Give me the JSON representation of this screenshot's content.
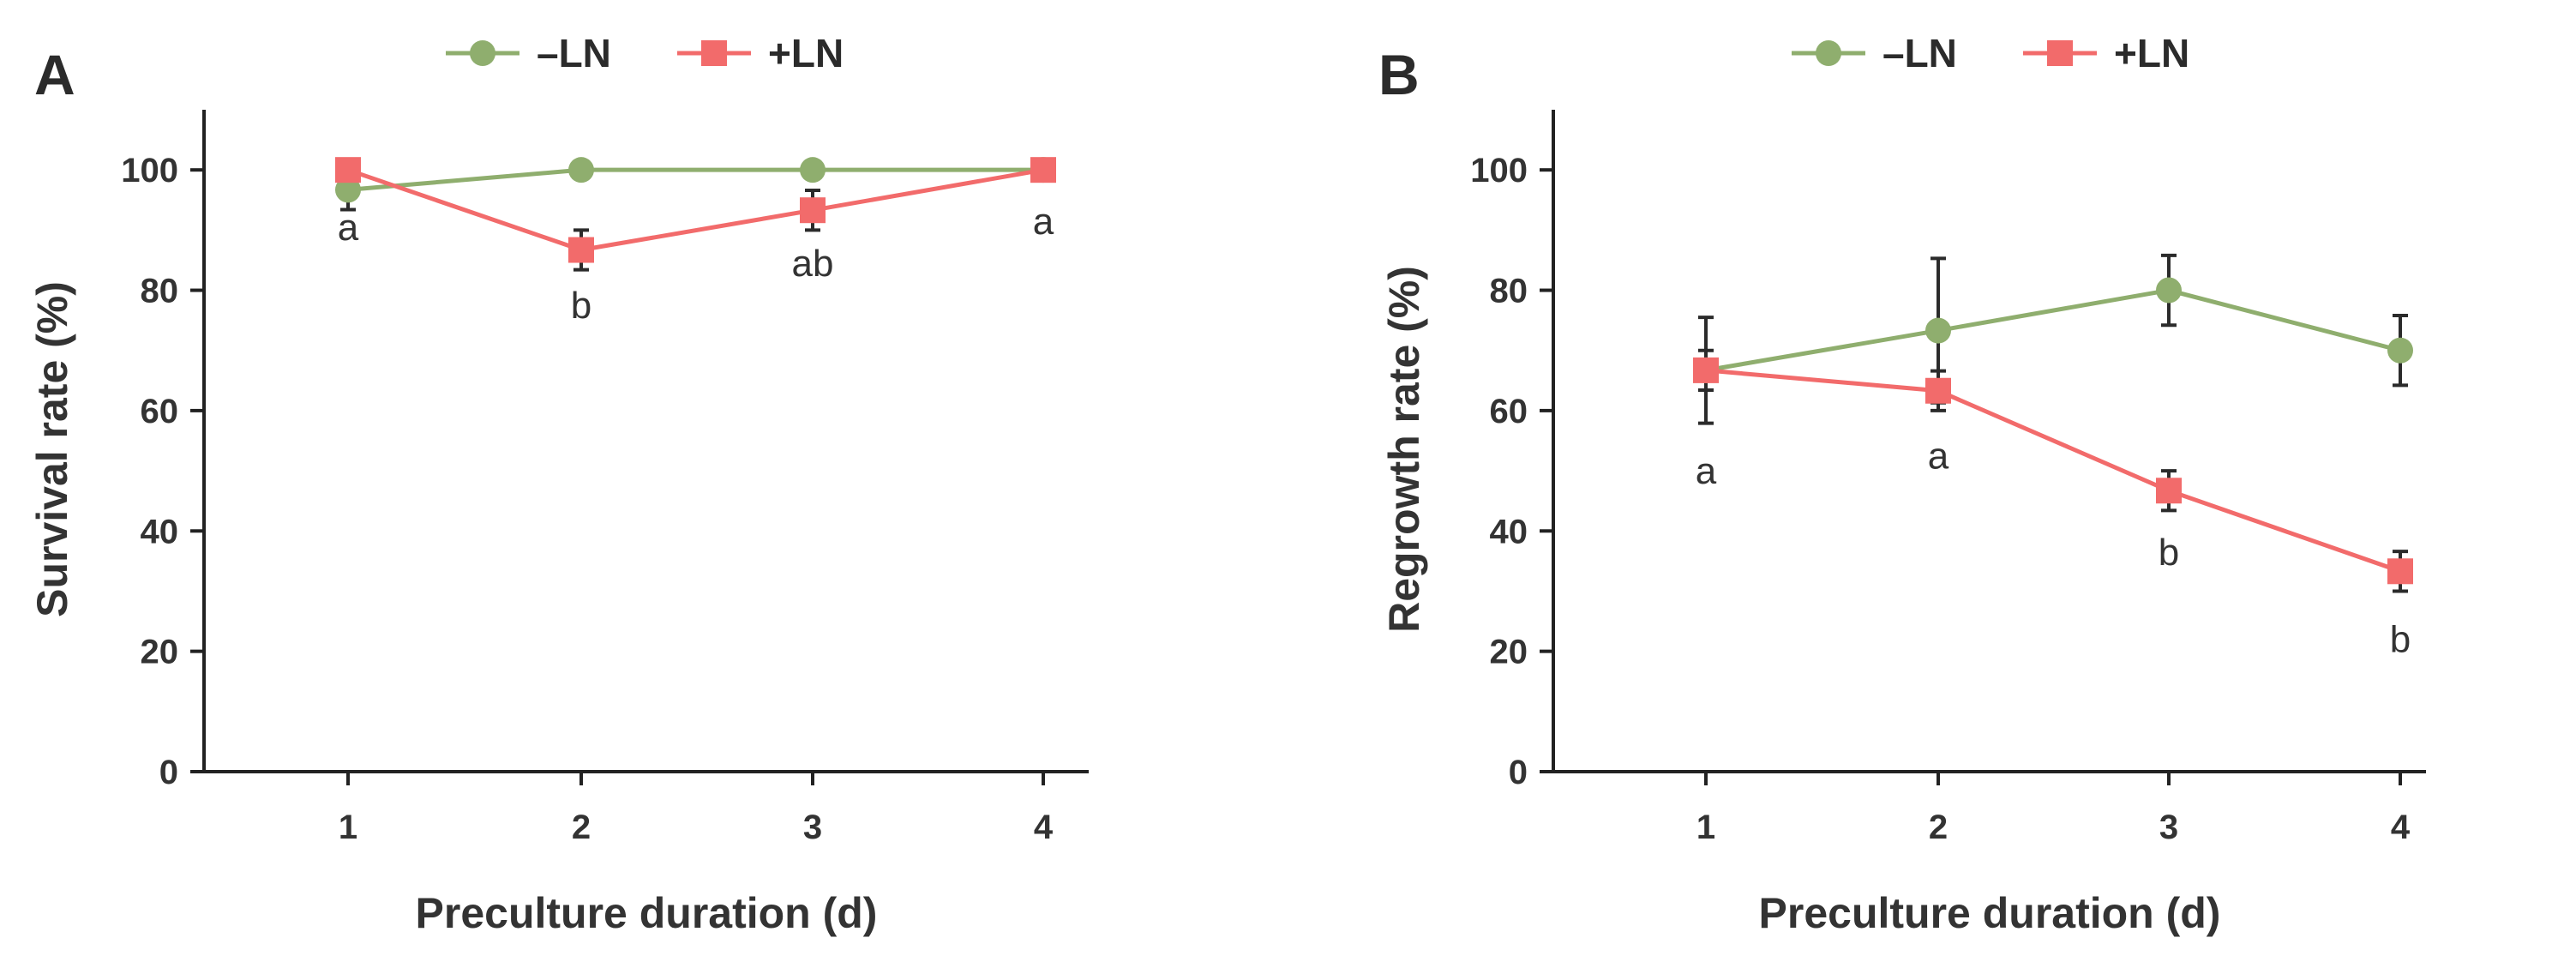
{
  "colors": {
    "minus_ln": "#8fae6e",
    "plus_ln": "#f26b6b",
    "text": "#333333"
  },
  "chart_data": [
    {
      "panel": "A",
      "type": "line",
      "xlabel": "Preculture duration (d)",
      "ylabel": "Survival rate (%)",
      "x": [
        1,
        2,
        3,
        4
      ],
      "ylim": [
        0,
        110
      ],
      "yticks": [
        0,
        20,
        40,
        60,
        80,
        100
      ],
      "legend": [
        "–LN",
        "+LN"
      ],
      "legend_position": "top-center",
      "series": [
        {
          "name": "–LN",
          "marker": "circle",
          "color": "#8fae6e",
          "values": [
            96.7,
            100,
            100,
            100
          ],
          "errors": [
            3.3,
            0,
            0,
            0
          ]
        },
        {
          "name": "+LN",
          "marker": "square",
          "color": "#f26b6b",
          "values": [
            100,
            86.7,
            93.3,
            100
          ],
          "errors": [
            0,
            3.3,
            3.3,
            0
          ]
        }
      ],
      "annotations": [
        {
          "x": 1,
          "text": "a",
          "y": 90.5
        },
        {
          "x": 2,
          "text": "b",
          "y": 77.5
        },
        {
          "x": 3,
          "text": "ab",
          "y": 84.5
        },
        {
          "x": 4,
          "text": "a",
          "y": 91.5
        }
      ]
    },
    {
      "panel": "B",
      "type": "line",
      "xlabel": "Preculture duration (d)",
      "ylabel": "Regrowth rate (%)",
      "x": [
        1,
        2,
        3,
        4
      ],
      "ylim": [
        0,
        110
      ],
      "yticks": [
        0,
        20,
        40,
        60,
        80,
        100
      ],
      "legend": [
        "–LN",
        "+LN"
      ],
      "legend_position": "top-center",
      "series": [
        {
          "name": "–LN",
          "marker": "circle",
          "color": "#8fae6e",
          "values": [
            66.7,
            73.3,
            80,
            70
          ],
          "errors": [
            8.8,
            12.0,
            5.8,
            5.8
          ]
        },
        {
          "name": "+LN",
          "marker": "square",
          "color": "#f26b6b",
          "values": [
            66.7,
            63.3,
            46.7,
            33.3
          ],
          "errors": [
            3.3,
            3.3,
            3.3,
            3.3
          ]
        }
      ],
      "annotations": [
        {
          "x": 1,
          "text": "a",
          "y": 50
        },
        {
          "x": 2,
          "text": "a",
          "y": 52.5
        },
        {
          "x": 3,
          "text": "b",
          "y": 36.5
        },
        {
          "x": 4,
          "text": "b",
          "y": 22
        }
      ]
    }
  ]
}
